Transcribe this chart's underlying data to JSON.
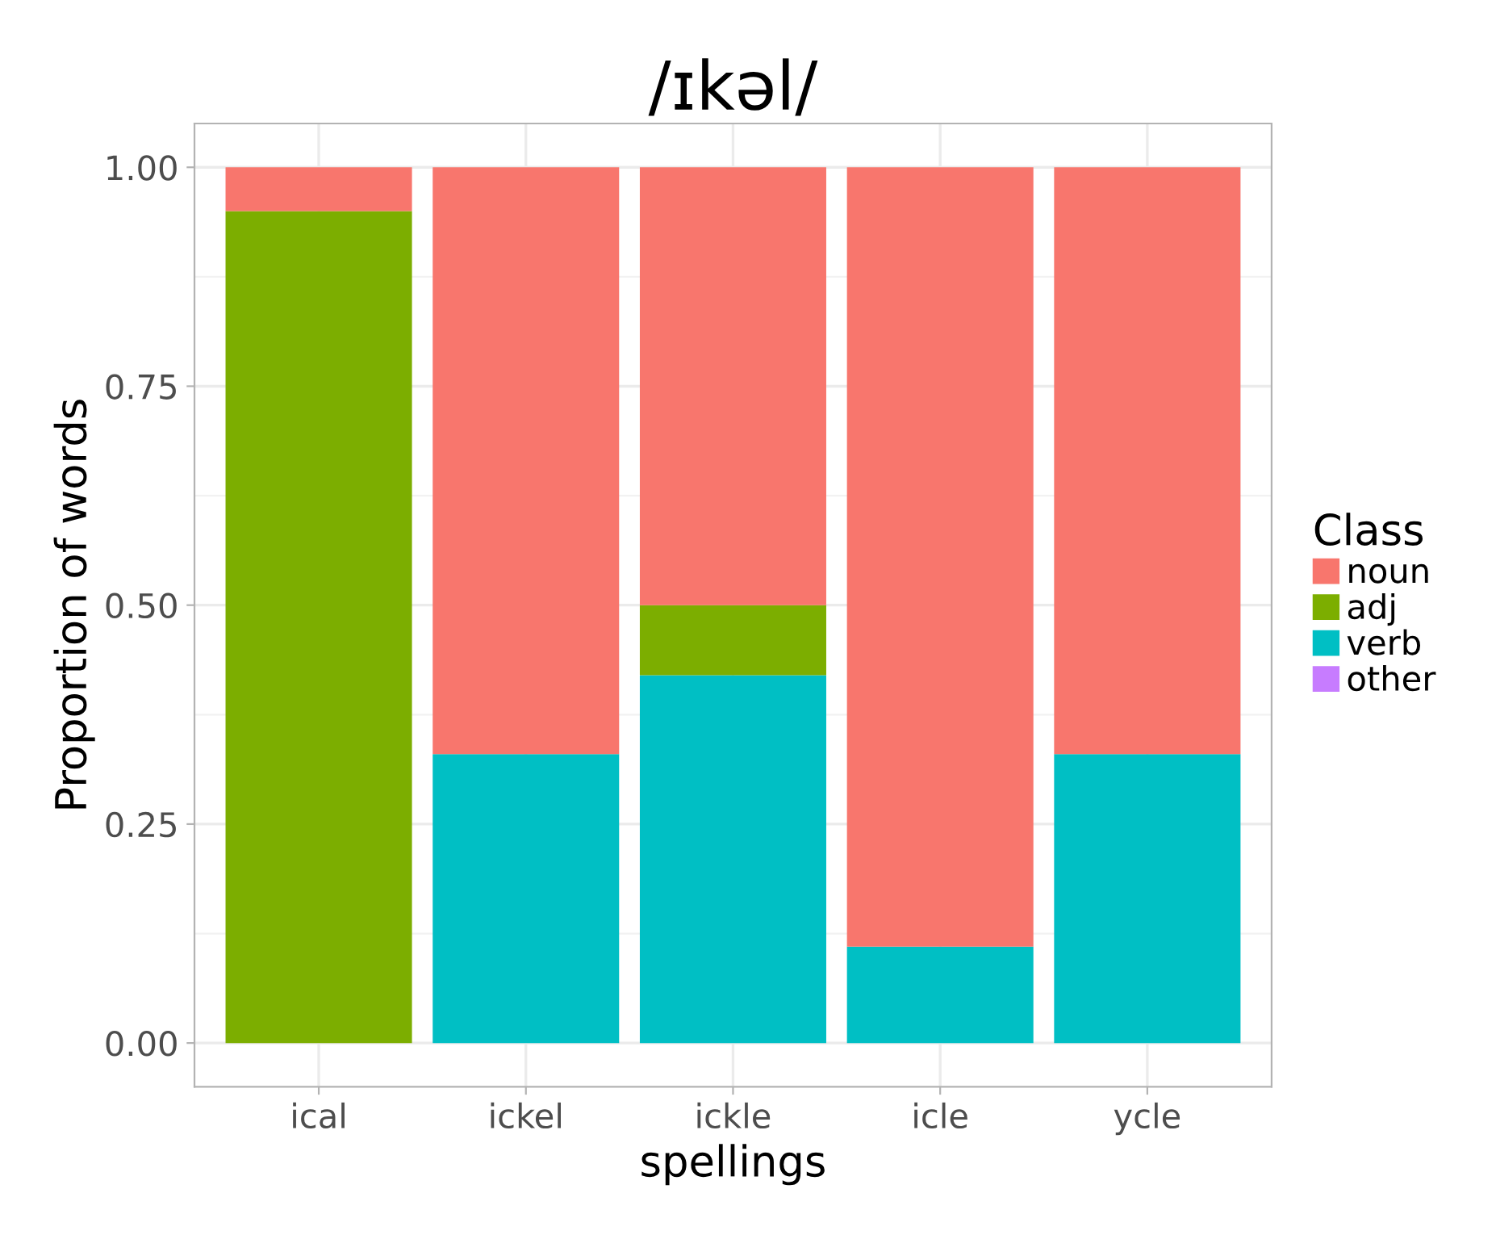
{
  "chart_data": {
    "type": "bar",
    "title": "/ɪkəl/",
    "xlabel": "spellings",
    "ylabel": "Proportion of words",
    "legend_title": "Class",
    "categories": [
      "ical",
      "ickel",
      "ickle",
      "icle",
      "ycle"
    ],
    "stacked": true,
    "series": [
      {
        "name": "other",
        "color": "#c77cff",
        "values": [
          0,
          0,
          0,
          0,
          0
        ]
      },
      {
        "name": "verb",
        "color": "#00bfc4",
        "values": [
          0,
          0.33,
          0.42,
          0.11,
          0.33
        ]
      },
      {
        "name": "adj",
        "color": "#7cae00",
        "values": [
          0.95,
          0,
          0.08,
          0,
          0
        ]
      },
      {
        "name": "noun",
        "color": "#f8766d",
        "values": [
          0.05,
          0.67,
          0.5,
          0.89,
          0.67
        ]
      }
    ],
    "ylim": [
      -0.05,
      1.05
    ],
    "yticks": [
      {
        "value": 0,
        "label": "0.00"
      },
      {
        "value": 0.25,
        "label": "0.25"
      },
      {
        "value": 0.5,
        "label": "0.50"
      },
      {
        "value": 0.75,
        "label": "0.75"
      },
      {
        "value": 1,
        "label": "1.00"
      }
    ],
    "grid": true,
    "legend": "right"
  }
}
